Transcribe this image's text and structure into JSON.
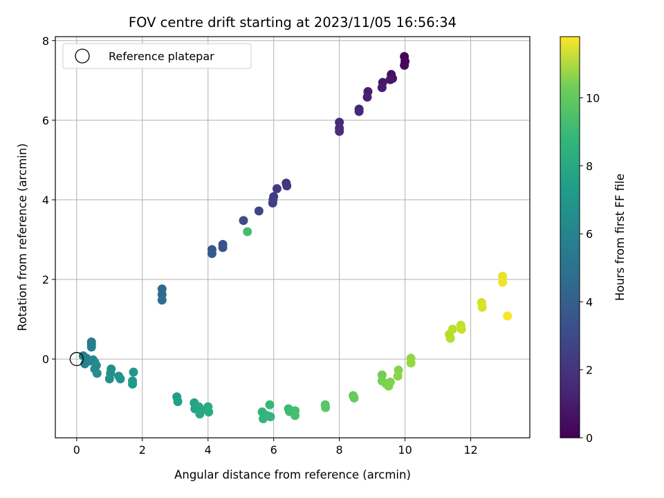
{
  "chart_data": {
    "type": "scatter",
    "title": "FOV centre drift starting at 2023/11/05 16:56:34",
    "xlabel": "Angular distance from reference (arcmin)",
    "ylabel": "Rotation from reference (arcmin)",
    "xlim": [
      -0.65,
      13.8
    ],
    "ylim": [
      -1.98,
      8.1
    ],
    "xticks": [
      0,
      2,
      4,
      6,
      8,
      10,
      12
    ],
    "yticks": [
      0,
      2,
      4,
      6,
      8
    ],
    "grid": true,
    "legend": {
      "label": "Reference platepar",
      "position": "top-left",
      "marker": "open-circle"
    },
    "reference_point": {
      "x": 0,
      "y": 0
    },
    "colorbar": {
      "label": "Hours from first FF file",
      "colormap": "viridis",
      "range": [
        0,
        11.8
      ],
      "ticks": [
        0,
        2,
        4,
        6,
        8,
        10
      ]
    },
    "points": [
      {
        "x": 9.98,
        "y": 7.6,
        "t": 0.1
      },
      {
        "x": 10.0,
        "y": 7.48,
        "t": 0.2
      },
      {
        "x": 9.98,
        "y": 7.38,
        "t": 0.3
      },
      {
        "x": 9.58,
        "y": 7.15,
        "t": 0.5
      },
      {
        "x": 9.62,
        "y": 7.05,
        "t": 0.6
      },
      {
        "x": 9.55,
        "y": 7.02,
        "t": 0.7
      },
      {
        "x": 9.32,
        "y": 6.95,
        "t": 0.8
      },
      {
        "x": 9.3,
        "y": 6.82,
        "t": 0.9
      },
      {
        "x": 8.87,
        "y": 6.72,
        "t": 1.0
      },
      {
        "x": 8.85,
        "y": 6.58,
        "t": 1.1
      },
      {
        "x": 8.6,
        "y": 6.28,
        "t": 1.2
      },
      {
        "x": 8.6,
        "y": 6.22,
        "t": 1.3
      },
      {
        "x": 8.0,
        "y": 5.95,
        "t": 1.4
      },
      {
        "x": 8.0,
        "y": 5.8,
        "t": 1.5
      },
      {
        "x": 8.0,
        "y": 5.72,
        "t": 1.6
      },
      {
        "x": 6.38,
        "y": 4.42,
        "t": 1.8
      },
      {
        "x": 6.4,
        "y": 4.35,
        "t": 1.9
      },
      {
        "x": 6.1,
        "y": 4.28,
        "t": 2.0
      },
      {
        "x": 6.0,
        "y": 4.08,
        "t": 2.1
      },
      {
        "x": 5.98,
        "y": 4.0,
        "t": 2.2
      },
      {
        "x": 5.97,
        "y": 3.92,
        "t": 2.3
      },
      {
        "x": 5.55,
        "y": 3.72,
        "t": 2.5
      },
      {
        "x": 5.08,
        "y": 3.48,
        "t": 2.7
      },
      {
        "x": 4.45,
        "y": 2.88,
        "t": 3.0
      },
      {
        "x": 4.45,
        "y": 2.8,
        "t": 3.1
      },
      {
        "x": 4.12,
        "y": 2.75,
        "t": 3.2
      },
      {
        "x": 4.12,
        "y": 2.65,
        "t": 3.3
      },
      {
        "x": 2.6,
        "y": 1.76,
        "t": 4.0
      },
      {
        "x": 2.6,
        "y": 1.62,
        "t": 4.1
      },
      {
        "x": 2.6,
        "y": 1.48,
        "t": 4.2
      },
      {
        "x": 0.45,
        "y": 0.43,
        "t": 4.8
      },
      {
        "x": 0.45,
        "y": 0.37,
        "t": 4.9
      },
      {
        "x": 0.45,
        "y": 0.3,
        "t": 5.0
      },
      {
        "x": 0.2,
        "y": 0.08,
        "t": 5.1
      },
      {
        "x": 0.3,
        "y": 0.02,
        "t": 5.2
      },
      {
        "x": 0.25,
        "y": -0.12,
        "t": 5.3
      },
      {
        "x": 0.4,
        "y": -0.05,
        "t": 5.4
      },
      {
        "x": 0.5,
        "y": -0.02,
        "t": 5.5
      },
      {
        "x": 0.55,
        "y": -0.08,
        "t": 5.5
      },
      {
        "x": 0.6,
        "y": -0.16,
        "t": 5.6
      },
      {
        "x": 0.55,
        "y": -0.25,
        "t": 5.6
      },
      {
        "x": 0.62,
        "y": -0.36,
        "t": 5.7
      },
      {
        "x": 1.05,
        "y": -0.25,
        "t": 5.8
      },
      {
        "x": 1.03,
        "y": -0.36,
        "t": 5.9
      },
      {
        "x": 1.0,
        "y": -0.5,
        "t": 5.9
      },
      {
        "x": 1.28,
        "y": -0.43,
        "t": 6.0
      },
      {
        "x": 1.33,
        "y": -0.5,
        "t": 6.1
      },
      {
        "x": 1.73,
        "y": -0.33,
        "t": 6.2
      },
      {
        "x": 1.7,
        "y": -0.55,
        "t": 6.3
      },
      {
        "x": 1.7,
        "y": -0.63,
        "t": 6.4
      },
      {
        "x": 3.05,
        "y": -0.95,
        "t": 6.6
      },
      {
        "x": 3.08,
        "y": -1.07,
        "t": 6.7
      },
      {
        "x": 3.58,
        "y": -1.1,
        "t": 6.8
      },
      {
        "x": 3.6,
        "y": -1.25,
        "t": 6.9
      },
      {
        "x": 3.72,
        "y": -1.2,
        "t": 7.0
      },
      {
        "x": 3.8,
        "y": -1.28,
        "t": 7.0
      },
      {
        "x": 3.75,
        "y": -1.38,
        "t": 7.1
      },
      {
        "x": 4.0,
        "y": -1.2,
        "t": 7.2
      },
      {
        "x": 4.02,
        "y": -1.33,
        "t": 7.3
      },
      {
        "x": 5.2,
        "y": 3.2,
        "t": 8.2
      },
      {
        "x": 5.65,
        "y": -1.33,
        "t": 7.6
      },
      {
        "x": 5.68,
        "y": -1.5,
        "t": 7.7
      },
      {
        "x": 5.8,
        "y": -1.42,
        "t": 7.8
      },
      {
        "x": 5.9,
        "y": -1.45,
        "t": 7.8
      },
      {
        "x": 5.88,
        "y": -1.15,
        "t": 7.9
      },
      {
        "x": 6.45,
        "y": -1.25,
        "t": 8.0
      },
      {
        "x": 6.48,
        "y": -1.32,
        "t": 8.1
      },
      {
        "x": 6.65,
        "y": -1.3,
        "t": 8.2
      },
      {
        "x": 6.65,
        "y": -1.42,
        "t": 8.3
      },
      {
        "x": 7.57,
        "y": -1.15,
        "t": 8.6
      },
      {
        "x": 7.58,
        "y": -1.22,
        "t": 8.7
      },
      {
        "x": 8.42,
        "y": -0.92,
        "t": 8.9
      },
      {
        "x": 8.45,
        "y": -0.98,
        "t": 9.0
      },
      {
        "x": 9.3,
        "y": -0.4,
        "t": 9.2
      },
      {
        "x": 9.3,
        "y": -0.55,
        "t": 9.3
      },
      {
        "x": 9.42,
        "y": -0.62,
        "t": 9.4
      },
      {
        "x": 9.5,
        "y": -0.68,
        "t": 9.5
      },
      {
        "x": 9.55,
        "y": -0.58,
        "t": 9.5
      },
      {
        "x": 9.8,
        "y": -0.28,
        "t": 9.6
      },
      {
        "x": 9.78,
        "y": -0.43,
        "t": 9.7
      },
      {
        "x": 10.18,
        "y": 0.02,
        "t": 9.8
      },
      {
        "x": 10.18,
        "y": -0.1,
        "t": 9.9
      },
      {
        "x": 11.35,
        "y": 0.62,
        "t": 10.4
      },
      {
        "x": 11.38,
        "y": 0.52,
        "t": 10.5
      },
      {
        "x": 11.45,
        "y": 0.75,
        "t": 10.6
      },
      {
        "x": 11.7,
        "y": 0.85,
        "t": 10.7
      },
      {
        "x": 11.72,
        "y": 0.75,
        "t": 10.8
      },
      {
        "x": 12.33,
        "y": 1.42,
        "t": 11.0
      },
      {
        "x": 12.35,
        "y": 1.3,
        "t": 11.1
      },
      {
        "x": 12.97,
        "y": 2.08,
        "t": 11.4
      },
      {
        "x": 12.97,
        "y": 1.93,
        "t": 11.5
      },
      {
        "x": 13.12,
        "y": 1.08,
        "t": 11.7
      }
    ]
  }
}
